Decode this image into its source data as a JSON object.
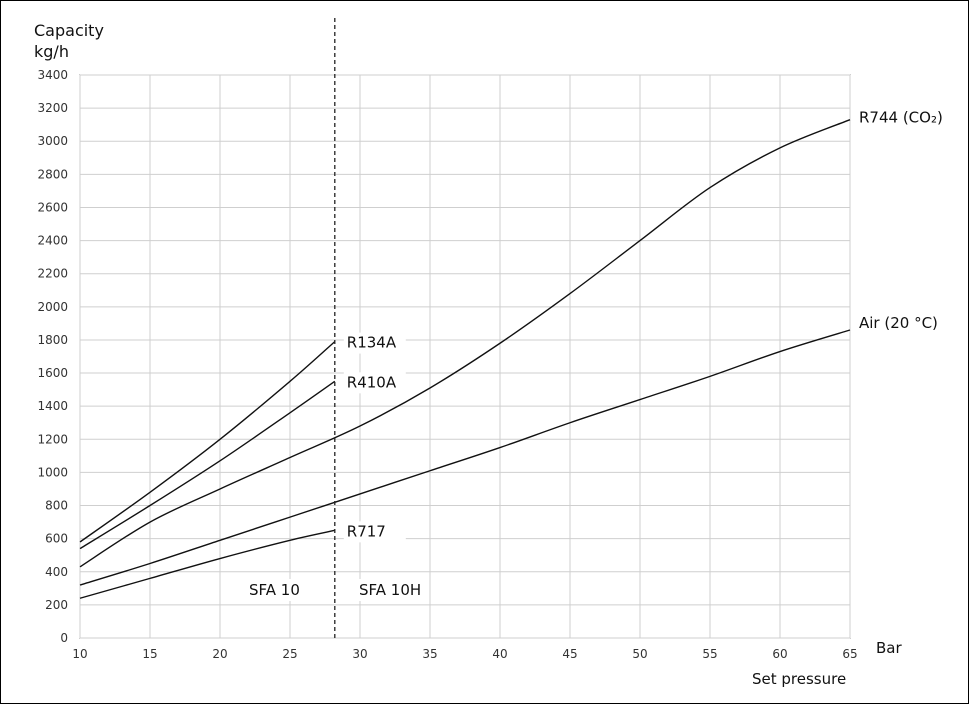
{
  "chart_data": {
    "type": "line",
    "ylabel_line1": "Capacity",
    "ylabel_line2": "kg/h",
    "x_unit": "Bar",
    "xlabel": "Set pressure",
    "xlim": [
      10,
      65
    ],
    "ylim": [
      0,
      3400
    ],
    "x_ticks": [
      10,
      15,
      20,
      25,
      30,
      35,
      40,
      45,
      50,
      55,
      60,
      65
    ],
    "y_ticks": [
      0,
      200,
      400,
      600,
      800,
      1000,
      1200,
      1400,
      1600,
      1800,
      2000,
      2200,
      2400,
      2600,
      2800,
      3000,
      3200,
      3400
    ],
    "grid": true,
    "divider": {
      "x": 28.2,
      "left_label": "SFA 10",
      "right_label": "SFA 10H"
    },
    "series": [
      {
        "name": "R134A",
        "x": [
          10,
          15,
          20,
          25,
          28.2
        ],
        "y": [
          580,
          880,
          1200,
          1550,
          1790
        ]
      },
      {
        "name": "R410A",
        "x": [
          10,
          15,
          20,
          25,
          28.2
        ],
        "y": [
          540,
          800,
          1070,
          1360,
          1550
        ]
      },
      {
        "name": "R744 (CO₂)",
        "x": [
          10,
          15,
          20,
          25,
          30,
          35,
          40,
          45,
          50,
          55,
          60,
          65
        ],
        "y": [
          430,
          700,
          900,
          1090,
          1280,
          1510,
          1780,
          2080,
          2400,
          2720,
          2960,
          3130
        ]
      },
      {
        "name": "Air (20 °C)",
        "x": [
          10,
          15,
          20,
          25,
          30,
          35,
          40,
          45,
          50,
          55,
          60,
          65
        ],
        "y": [
          320,
          450,
          590,
          730,
          870,
          1010,
          1150,
          1300,
          1440,
          1580,
          1730,
          1860
        ]
      },
      {
        "name": "R717",
        "x": [
          10,
          15,
          20,
          25,
          28.2
        ],
        "y": [
          240,
          360,
          480,
          590,
          650
        ]
      }
    ]
  }
}
